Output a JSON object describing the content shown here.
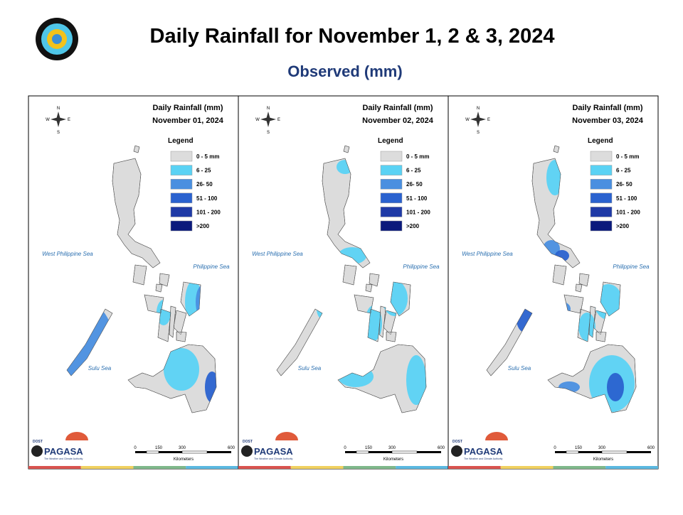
{
  "header": {
    "title": "Daily Rainfall for November 1, 2 & 3, 2024",
    "subtitle": "Observed (mm)"
  },
  "map_title": "Daily Rainfall (mm)",
  "panels": [
    {
      "date": "November 01, 2024"
    },
    {
      "date": "November 02, 2024"
    },
    {
      "date": "November 03, 2024"
    }
  ],
  "legend": {
    "title": "Legend",
    "items": [
      {
        "label": "0 - 5 mm",
        "color": "#dcdcdc"
      },
      {
        "label": "6 - 25",
        "color": "#5ad2f4"
      },
      {
        "label": "26- 50",
        "color": "#4a8fe0"
      },
      {
        "label": "51 - 100",
        "color": "#2a62cf"
      },
      {
        "label": "101 - 200",
        "color": "#1f3aa6"
      },
      {
        "label": ">200",
        "color": "#0b1a7c"
      }
    ]
  },
  "seas": {
    "west": "West Philippine Sea",
    "east": "Philippine Sea",
    "sulu": "Sulu Sea"
  },
  "compass": {
    "n": "N",
    "s": "S",
    "w": "W",
    "e": "E"
  },
  "scale": {
    "ticks": [
      "0",
      "150",
      "300",
      "600"
    ],
    "unit": "Kilometers"
  },
  "logo": {
    "agency": "DOST",
    "name": "PAGASA",
    "tagline": "The Weather and Climate Authority"
  }
}
